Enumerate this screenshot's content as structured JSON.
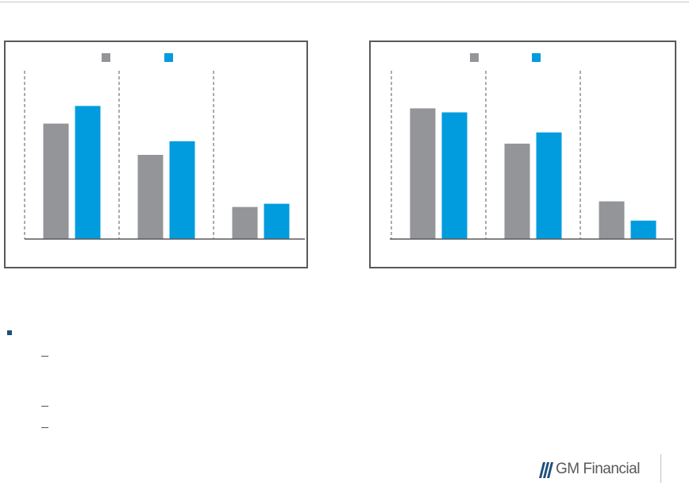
{
  "brand": {
    "name": "GM Financial",
    "mark_color": "#1e4f7a",
    "text_color": "#58595b"
  },
  "colors": {
    "series_gray": "#939598",
    "series_blue": "#009cde",
    "panel_border": "#58595b",
    "bullet": "#1e4f7a"
  },
  "chart_data": [
    {
      "type": "bar",
      "categories": [
        "",
        "",
        ""
      ],
      "series": [
        {
          "color": "#939598",
          "values": [
            72,
            52.5,
            20
          ]
        },
        {
          "color": "#009cde",
          "values": [
            83,
            61,
            22
          ]
        }
      ],
      "ylim": [
        0,
        105
      ],
      "grid": false,
      "legend": "top-center",
      "category_separators": "dashed"
    },
    {
      "type": "bar",
      "categories": [
        "",
        "",
        ""
      ],
      "series": [
        {
          "color": "#939598",
          "values": [
            81.5,
            59.5,
            23.5
          ]
        },
        {
          "color": "#009cde",
          "values": [
            79,
            66.5,
            11.5
          ]
        }
      ],
      "ylim": [
        0,
        105
      ],
      "grid": false,
      "legend": "top-center",
      "category_separators": "dashed"
    }
  ],
  "bullets": {
    "main": "",
    "subs": [
      "",
      "",
      ""
    ]
  }
}
